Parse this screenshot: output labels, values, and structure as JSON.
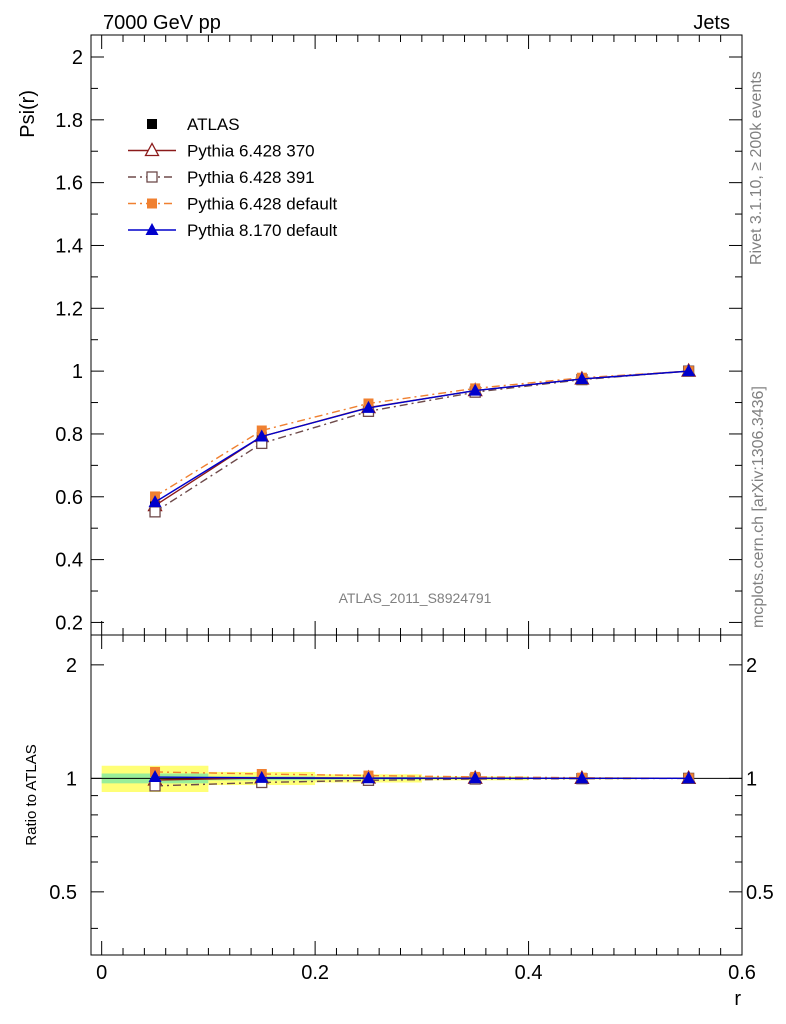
{
  "header": {
    "left": "7000 GeV pp",
    "right": "Jets"
  },
  "side_labels": {
    "rivet": "Rivet 3.1.10, ≥ 200k events",
    "mcplots": "mcplots.cern.ch [arXiv:1306.3436]"
  },
  "watermark": "ATLAS_2011_S8924791",
  "chart_data": [
    {
      "type": "line",
      "panel": "main",
      "ylabel": "Psi(r)",
      "xlim": [
        -0.01,
        0.6
      ],
      "ylim": [
        0.16,
        2.07
      ],
      "yticks": [
        "0.2",
        "0.4",
        "0.6",
        "0.8",
        "1",
        "1.2",
        "1.4",
        "1.6",
        "1.8",
        "2"
      ],
      "x": [
        0.05,
        0.15,
        0.25,
        0.35,
        0.45,
        0.55
      ],
      "legend": {
        "placement": "top-left"
      },
      "series": [
        {
          "name": "ATLAS",
          "values": [
            0.578,
            0.79,
            0.882,
            0.937,
            0.975,
            1.0
          ],
          "color": "#000000",
          "marker": "square-filled",
          "line": "none"
        },
        {
          "name": "Pythia 6.428 370",
          "values": [
            0.572,
            0.792,
            0.884,
            0.938,
            0.975,
            1.0
          ],
          "color": "#8b1a1a",
          "marker": "triangle-open",
          "line": "solid"
        },
        {
          "name": "Pythia 6.428 391",
          "values": [
            0.552,
            0.77,
            0.872,
            0.933,
            0.973,
            1.0
          ],
          "color": "#6e4a4a",
          "marker": "square-open",
          "line": "dashdot"
        },
        {
          "name": "Pythia 6.428 default",
          "values": [
            0.601,
            0.811,
            0.897,
            0.945,
            0.979,
            1.0
          ],
          "color": "#f08030",
          "marker": "square-filled",
          "line": "dashdot"
        },
        {
          "name": "Pythia 8.170 default",
          "values": [
            0.583,
            0.792,
            0.883,
            0.938,
            0.975,
            1.0
          ],
          "color": "#0000cc",
          "marker": "triangle-filled",
          "line": "solid"
        }
      ]
    },
    {
      "type": "line",
      "panel": "ratio",
      "ylabel": "Ratio to ATLAS",
      "xlabel": "r",
      "xlim": [
        -0.01,
        0.6
      ],
      "ylim": [
        0.34,
        2.4
      ],
      "yticks": [
        "0.5",
        "1",
        "2"
      ],
      "xticks": [
        "0",
        "0.2",
        "0.4",
        "0.6"
      ],
      "scale": "log",
      "x": [
        0.05,
        0.15,
        0.25,
        0.35,
        0.45,
        0.55
      ],
      "bands": {
        "edges": [
          0.0,
          0.1,
          0.2,
          0.3,
          0.4,
          0.5,
          0.6
        ],
        "stat": [
          0.03,
          0.012,
          0.008,
          0.005,
          0.003,
          0.0
        ],
        "total": [
          0.08,
          0.04,
          0.025,
          0.012,
          0.006,
          0.0
        ],
        "stat_color": "#99ee99",
        "total_color": "#ffff77"
      },
      "series": [
        {
          "name": "Pythia 6.428 370",
          "values": [
            0.99,
            1.003,
            1.002,
            1.001,
            1.0,
            1.0
          ],
          "color": "#8b1a1a",
          "marker": "triangle-open",
          "line": "solid"
        },
        {
          "name": "Pythia 6.428 391",
          "values": [
            0.955,
            0.975,
            0.988,
            0.996,
            0.998,
            1.0
          ],
          "color": "#6e4a4a",
          "marker": "square-open",
          "line": "dashdot"
        },
        {
          "name": "Pythia 6.428 default",
          "values": [
            1.04,
            1.027,
            1.017,
            1.009,
            1.004,
            1.0
          ],
          "color": "#f08030",
          "marker": "square-filled",
          "line": "dashdot"
        },
        {
          "name": "Pythia 8.170 default",
          "values": [
            1.008,
            1.003,
            1.001,
            1.001,
            1.0,
            1.0
          ],
          "color": "#0000cc",
          "marker": "triangle-filled",
          "line": "solid"
        }
      ]
    }
  ]
}
